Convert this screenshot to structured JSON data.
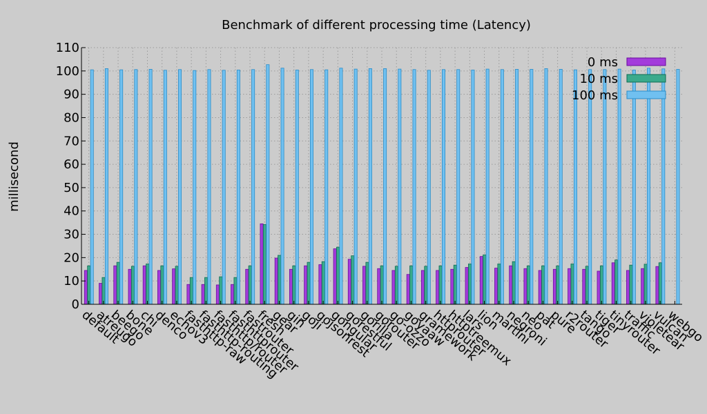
{
  "chart_data": {
    "type": "bar",
    "title": "Benchmark of different processing time (Latency)",
    "xlabel": "",
    "ylabel": "millisecond",
    "ylim": [
      0,
      110
    ],
    "yticks": [
      0,
      10,
      20,
      30,
      40,
      50,
      60,
      70,
      80,
      90,
      100,
      110
    ],
    "grid": true,
    "legend_position": "top-right",
    "categories": [
      "default",
      "atreugo",
      "beego",
      "bone",
      "chi",
      "denco",
      "echov3",
      "fasthttp-raw",
      "fasthttp-routing",
      "fasthttp/router",
      "fasthttprouter",
      "fastrouter",
      "fresh",
      "gear",
      "gin",
      "goji",
      "gojsonrest",
      "gongular",
      "gorestful",
      "gorilla",
      "gorouter",
      "go-ozzo",
      "goyaaw",
      "gramework",
      "httprouter",
      "httptreemux",
      "lars",
      "lion",
      "martini",
      "negroni",
      "neo",
      "pat",
      "pure",
      "r2router",
      "tango",
      "tiger",
      "tinyrouter",
      "traffic",
      "violetear",
      "vulcan",
      "webgo"
    ],
    "series": [
      {
        "name": "0 ms",
        "color": "#a33bdb",
        "border": "#6a0d9e",
        "values": [
          14.5,
          9,
          16.5,
          15,
          16.5,
          14.5,
          15.2,
          8.5,
          8.5,
          8.3,
          8.5,
          15,
          34.5,
          19.8,
          15,
          16.5,
          17,
          23.8,
          19.3,
          16.3,
          15.3,
          14.5,
          12.8,
          14.5,
          14.5,
          15,
          15.8,
          20.5,
          15.5,
          16.5,
          15.3,
          14.5,
          15,
          15.3,
          15,
          14.2,
          17.8,
          14.5,
          15.3,
          16.2,
          0
        ]
      },
      {
        "name": "10 ms",
        "color": "#3aaa8c",
        "border": "#0f6b52",
        "values": [
          16.5,
          11.5,
          18,
          16.3,
          17.3,
          16.5,
          16.3,
          11.5,
          11.5,
          11.8,
          11.5,
          16.5,
          34.2,
          21,
          16.5,
          18,
          18.3,
          24.5,
          20.8,
          18,
          16.5,
          16.3,
          16.5,
          16.3,
          16.5,
          16.8,
          17.3,
          21.2,
          17.3,
          18.3,
          16.5,
          16.5,
          16.5,
          17.3,
          16.3,
          16.5,
          19,
          16.8,
          17.2,
          17.8,
          0
        ]
      },
      {
        "name": "100 ms",
        "color": "#70c0f0",
        "border": "#2a8cc7",
        "values": [
          100.5,
          101,
          100.5,
          100.6,
          100.7,
          100.3,
          100.6,
          100.2,
          100.6,
          100.3,
          100.4,
          100.6,
          102.7,
          101.2,
          100.4,
          100.6,
          100.5,
          101.2,
          100.8,
          101,
          101,
          100.8,
          100.6,
          100.3,
          100.6,
          100.6,
          100.4,
          100.8,
          100.6,
          100.7,
          100.7,
          101,
          100.7,
          100.5,
          100.6,
          100.6,
          100.8,
          100.4,
          101.2,
          100.9,
          100.7
        ]
      }
    ]
  }
}
